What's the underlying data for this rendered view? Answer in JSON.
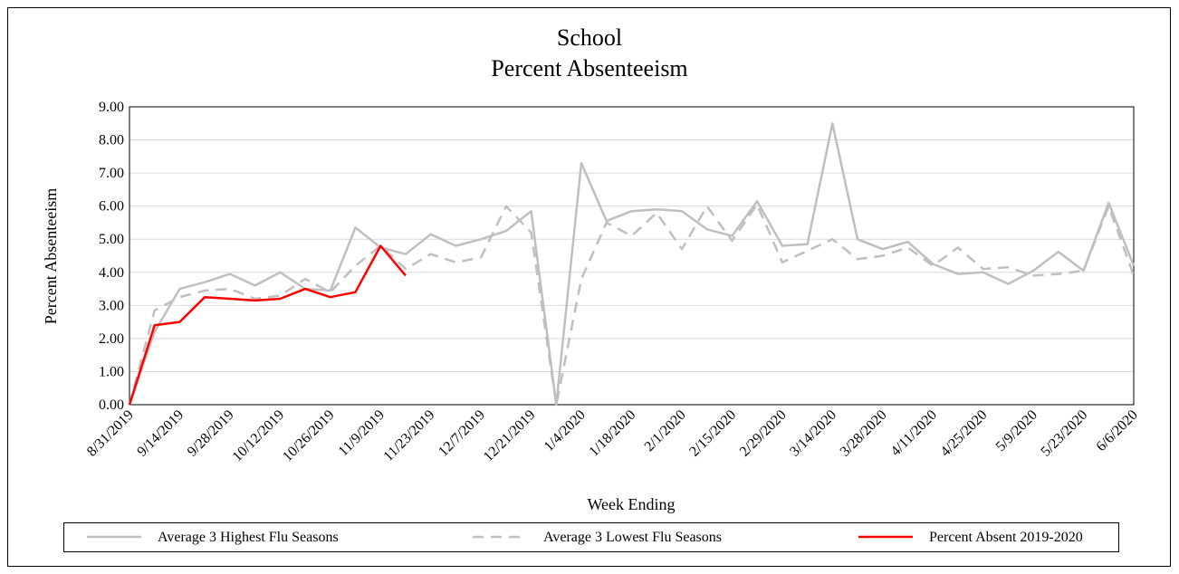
{
  "chart_data": {
    "type": "line",
    "title": "School",
    "subtitle": "Percent Absenteeism",
    "y_label": "Percent Absenteeism",
    "x_label": "Week Ending",
    "categories": [
      "8/31/2019",
      null,
      "9/14/2019",
      null,
      "9/28/2019",
      null,
      "10/12/2019",
      null,
      "10/26/2019",
      null,
      "11/9/2019",
      null,
      "11/23/2019",
      null,
      "12/7/2019",
      null,
      "12/21/2019",
      null,
      "1/4/2020",
      null,
      "1/18/2020",
      null,
      "2/1/2020",
      null,
      "2/15/2020",
      null,
      "2/29/2020",
      null,
      "3/14/2020",
      null,
      "3/28/2020",
      null,
      "4/11/2020",
      null,
      "4/25/2020",
      null,
      "5/9/2020",
      null,
      "5/23/2020",
      null,
      "6/6/2020"
    ],
    "series": [
      {
        "name": "Average 3 Highest Flu Seasons",
        "color": "#bfbfbf",
        "dash": "solid",
        "values": [
          0,
          2.2,
          3.5,
          3.7,
          3.95,
          3.6,
          4.0,
          3.5,
          3.45,
          5.35,
          4.75,
          4.55,
          5.15,
          4.8,
          5.0,
          5.25,
          5.85,
          0,
          7.3,
          5.55,
          5.85,
          5.9,
          5.85,
          5.3,
          5.1,
          6.15,
          4.8,
          4.85,
          8.5,
          5.0,
          4.7,
          4.92,
          4.25,
          3.95,
          4.0,
          3.65,
          4.05,
          4.62,
          4.05,
          6.1,
          4.2
        ]
      },
      {
        "name": "Average 3 Lowest Flu Seasons",
        "color": "#bfbfbf",
        "dash": "dashed",
        "values": [
          0,
          2.85,
          3.25,
          3.45,
          3.5,
          3.2,
          3.3,
          3.8,
          3.4,
          4.2,
          4.8,
          4.1,
          4.55,
          4.3,
          4.45,
          6.0,
          5.2,
          0,
          3.8,
          5.5,
          5.1,
          5.8,
          4.7,
          6.0,
          4.95,
          6.05,
          4.3,
          4.65,
          5.0,
          4.4,
          4.5,
          4.75,
          4.2,
          4.75,
          4.1,
          4.15,
          3.9,
          3.95,
          4.05,
          6.0,
          3.9
        ]
      },
      {
        "name": "Percent Absent 2019-2020",
        "color": "#ff0000",
        "dash": "solid",
        "values": [
          0,
          2.4,
          2.5,
          3.25,
          3.2,
          3.15,
          3.2,
          3.5,
          3.25,
          3.4,
          4.8,
          3.9,
          null,
          null,
          null,
          null,
          null,
          null,
          null,
          null,
          null,
          null,
          null,
          null,
          null,
          null,
          null,
          null,
          null,
          null,
          null,
          null,
          null,
          null,
          null,
          null,
          null,
          null,
          null,
          null,
          null
        ]
      }
    ],
    "ylim": [
      0,
      9
    ],
    "yticks": [
      {
        "value": 0,
        "label": "0.00"
      },
      {
        "value": 1,
        "label": "1.00"
      },
      {
        "value": 2,
        "label": "2.00"
      },
      {
        "value": 3,
        "label": "3.00"
      },
      {
        "value": 4,
        "label": "4.00"
      },
      {
        "value": 5,
        "label": "5.00"
      },
      {
        "value": 6,
        "label": "6.00"
      },
      {
        "value": 7,
        "label": "7.00"
      },
      {
        "value": 8,
        "label": "8.00"
      },
      {
        "value": 9,
        "label": "9.00"
      }
    ],
    "grid": true,
    "legend": "bottom"
  }
}
